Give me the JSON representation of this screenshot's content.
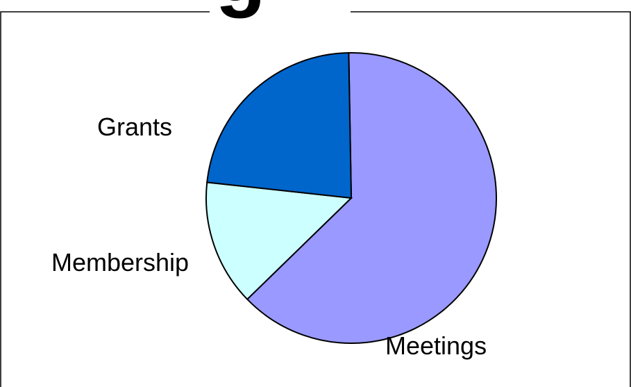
{
  "colors": {
    "frame": "#000000",
    "background": "#ffffff"
  },
  "clipped_title_glyph": "g",
  "chart_data": {
    "type": "pie",
    "title": "",
    "start_angle_deg": -1,
    "direction": "clockwise",
    "slices": [
      {
        "label": "Meetings",
        "value": 63,
        "color": "#9999ff"
      },
      {
        "label": "Membership",
        "value": 14,
        "color": "#ccffff"
      },
      {
        "label": "Grants",
        "value": 23,
        "color": "#0066cc"
      }
    ]
  }
}
